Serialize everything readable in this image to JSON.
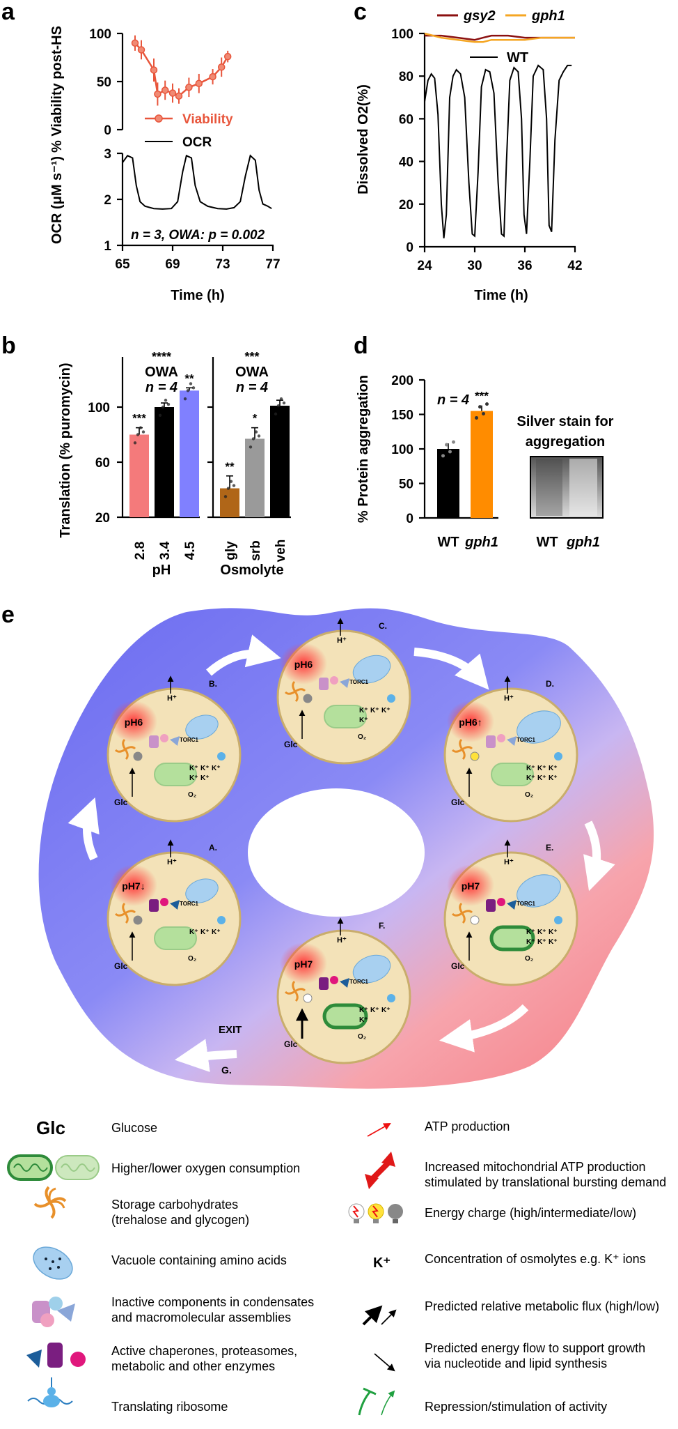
{
  "panels": {
    "a": {
      "letter": "a"
    },
    "b": {
      "letter": "b"
    },
    "c": {
      "letter": "c"
    },
    "d": {
      "letter": "d"
    },
    "e": {
      "letter": "e"
    }
  },
  "chart_data": [
    {
      "id": "a_top",
      "type": "line",
      "ylabel": "% Viability post-HS",
      "yticks": [
        "0",
        "50",
        "100"
      ],
      "ylim": [
        0,
        100
      ],
      "xlim": [
        65,
        77
      ],
      "series": [
        {
          "name": "Viability",
          "color": "#e8553b",
          "x": [
            66.0,
            66.5,
            67.5,
            67.8,
            68.4,
            69.0,
            69.5,
            70.3,
            71.1,
            72.2,
            72.9,
            73.4
          ],
          "y": [
            90,
            83,
            62,
            37,
            41,
            38,
            35,
            44,
            48,
            55,
            65,
            76
          ],
          "err": [
            8,
            10,
            12,
            12,
            10,
            10,
            8,
            10,
            10,
            8,
            10,
            6
          ]
        }
      ]
    },
    {
      "id": "a_bottom",
      "type": "line",
      "ylabel": "OCR (μM s⁻¹)",
      "xlabel": "Time (h)",
      "xticks": [
        "65",
        "69",
        "73",
        "77"
      ],
      "yticks": [
        "1",
        "2",
        "3"
      ],
      "xlim": [
        65,
        77
      ],
      "ylim": [
        1,
        3
      ],
      "annotation": "n = 3, OWA: p = 0.002",
      "series": [
        {
          "name": "OCR",
          "color": "#000000",
          "x": [
            65.0,
            65.4,
            65.8,
            66.1,
            66.4,
            66.8,
            67.5,
            68.2,
            68.9,
            69.4,
            69.8,
            70.1,
            70.5,
            70.8,
            71.2,
            71.8,
            72.6,
            73.3,
            73.9,
            74.4,
            74.8,
            75.2,
            75.6,
            75.9,
            76.2,
            76.6,
            76.9
          ],
          "y": [
            2.8,
            2.95,
            2.9,
            2.3,
            1.95,
            1.85,
            1.8,
            1.79,
            1.8,
            1.95,
            2.6,
            2.95,
            2.9,
            2.3,
            1.95,
            1.85,
            1.8,
            1.79,
            1.82,
            1.95,
            2.5,
            2.95,
            2.85,
            2.2,
            1.9,
            1.85,
            1.8
          ]
        }
      ]
    },
    {
      "id": "b",
      "type": "bar",
      "ylabel": "Translation (% puromycin)",
      "yticks": [
        "20",
        "60",
        "100"
      ],
      "ylim": [
        20,
        120
      ],
      "groups": [
        {
          "title": "pH",
          "stat": [
            "****",
            "OWA",
            "n = 4"
          ],
          "categories": [
            "2.8",
            "3.4",
            "4.5"
          ],
          "values": [
            80,
            100,
            112
          ],
          "err": [
            5,
            3,
            2
          ],
          "sig": [
            "***",
            "",
            "**"
          ],
          "colors": [
            "#f47a7b",
            "#000000",
            "#8080ff"
          ]
        },
        {
          "title": "Osmolyte",
          "stat": [
            "***",
            "OWA",
            "n = 4"
          ],
          "categories": [
            "gly",
            "srb",
            "veh"
          ],
          "values": [
            41,
            77,
            101
          ],
          "err": [
            9,
            8,
            4
          ],
          "sig": [
            "**",
            "*",
            ""
          ],
          "colors": [
            "#b06618",
            "#9a9a9a",
            "#000000"
          ]
        }
      ]
    },
    {
      "id": "c",
      "type": "line",
      "ylabel": "Dissolved O2(%)",
      "xlabel": "Time (h)",
      "xticks": [
        "24",
        "30",
        "36",
        "42"
      ],
      "yticks": [
        "0",
        "20",
        "40",
        "60",
        "80",
        "100"
      ],
      "xlim": [
        24,
        42
      ],
      "ylim": [
        0,
        100
      ],
      "series": [
        {
          "name": "gsy2",
          "color": "#8b1010",
          "x": [
            24,
            26,
            28,
            30,
            31,
            32,
            34,
            36,
            38,
            40,
            42
          ],
          "y": [
            99,
            99,
            98,
            97,
            98,
            99,
            99,
            98,
            98,
            98,
            98
          ]
        },
        {
          "name": "gph1",
          "color": "#f5a623",
          "x": [
            24,
            26,
            28,
            30,
            31,
            32,
            34,
            36,
            38,
            40,
            42
          ],
          "y": [
            100,
            98,
            97,
            96,
            96,
            97,
            97,
            97,
            98,
            98,
            98
          ]
        },
        {
          "name": "WT",
          "color": "#000000",
          "x": [
            24.0,
            24.4,
            24.8,
            25.2,
            25.6,
            26.0,
            26.3,
            26.6,
            27.0,
            27.4,
            27.8,
            28.3,
            28.8,
            29.3,
            29.7,
            30.0,
            30.4,
            30.8,
            31.3,
            31.8,
            32.3,
            32.8,
            33.2,
            33.5,
            33.8,
            34.2,
            34.7,
            35.2,
            35.6,
            35.9,
            36.2,
            36.6,
            37.0,
            37.6,
            38.2,
            38.6,
            38.9,
            39.2,
            39.6,
            40.1,
            40.6,
            41.1,
            41.6
          ],
          "y": [
            68,
            78,
            81,
            79,
            62,
            20,
            4,
            15,
            70,
            80,
            83,
            81,
            70,
            30,
            6,
            5,
            35,
            75,
            83,
            82,
            72,
            30,
            6,
            5,
            40,
            78,
            84,
            82,
            60,
            15,
            6,
            40,
            80,
            85,
            83,
            60,
            10,
            7,
            50,
            78,
            82,
            85,
            85
          ]
        }
      ]
    },
    {
      "id": "d",
      "type": "bar",
      "ylabel": "% Protein aggregation",
      "yticks": [
        "0",
        "50",
        "100",
        "150",
        "200"
      ],
      "ylim": [
        0,
        200
      ],
      "categories": [
        "WT",
        "gph1"
      ],
      "values": [
        100,
        155
      ],
      "err": [
        8,
        8
      ],
      "sig": [
        "",
        "***"
      ],
      "colors": [
        "#000000",
        "#ff8c00"
      ],
      "annotation": "n = 4"
    }
  ],
  "panel_a": {
    "legend": {
      "viability": "Viability",
      "ocr": "OCR"
    }
  },
  "panel_b": {
    "xgroup_labels": [
      "pH",
      "Osmolyte"
    ]
  },
  "panel_c": {
    "legend": [
      "gsy2",
      "gph1",
      "WT"
    ]
  },
  "panel_d": {
    "gel_title": "Silver stain for aggregation",
    "gel_title_l1": "Silver stain for",
    "gel_title_l2": "aggregation",
    "gel_labels": [
      "WT",
      "gph1"
    ]
  },
  "panel_e": {
    "cells": [
      {
        "letter": "A.",
        "ph": "pH7↓"
      },
      {
        "letter": "B.",
        "ph": "pH6"
      },
      {
        "letter": "C.",
        "ph": "pH6"
      },
      {
        "letter": "D.",
        "ph": "pH6↑"
      },
      {
        "letter": "E.",
        "ph": "pH7"
      },
      {
        "letter": "F.",
        "ph": "pH7"
      }
    ],
    "exit_label": "EXIT",
    "g_label": "G.",
    "glc": "Glc",
    "torc": "TORC1",
    "hplus": "H⁺",
    "o2": "O₂",
    "kplus": "K⁺"
  },
  "legend": {
    "left": [
      {
        "icon": "glc-text-icon",
        "label": "Glucose"
      },
      {
        "icon": "mitochondria-icon",
        "label": "Higher/lower oxygen consumption"
      },
      {
        "icon": "storage-carbohydrate-icon",
        "label": "Storage carbohydrates",
        "label2": "(trehalose and glycogen)"
      },
      {
        "icon": "vacuole-icon",
        "label": "Vacuole containing amino acids"
      },
      {
        "icon": "condensate-icon",
        "label": "Inactive components in condensates",
        "label2": "and macromolecular assemblies"
      },
      {
        "icon": "chaperone-icon",
        "label": "Active chaperones, proteasomes,",
        "label2": "metabolic and other enzymes"
      },
      {
        "icon": "ribosome-icon",
        "label": "Translating ribosome"
      }
    ],
    "right": [
      {
        "icon": "atp-arrow-icon",
        "label": "ATP production"
      },
      {
        "icon": "mito-atp-arrow-icon",
        "label": "Increased mitochondrial ATP production",
        "label2": "stimulated by translational bursting demand"
      },
      {
        "icon": "energy-bulb-icon",
        "label": "Energy charge (high/intermediate/low)"
      },
      {
        "icon": "k-ion-icon",
        "label": "Concentration of osmolytes e.g. K⁺ ions"
      },
      {
        "icon": "flux-arrow-icon",
        "label": "Predicted relative metabolic flux (high/low)"
      },
      {
        "icon": "energy-flow-icon",
        "label": "Predicted energy flow to support growth",
        "label2": "via nucleotide and lipid synthesis"
      },
      {
        "icon": "repression-icon",
        "label": "Repression/stimulation of activity"
      }
    ],
    "glc_text": "Glc",
    "k_text": "K⁺"
  }
}
